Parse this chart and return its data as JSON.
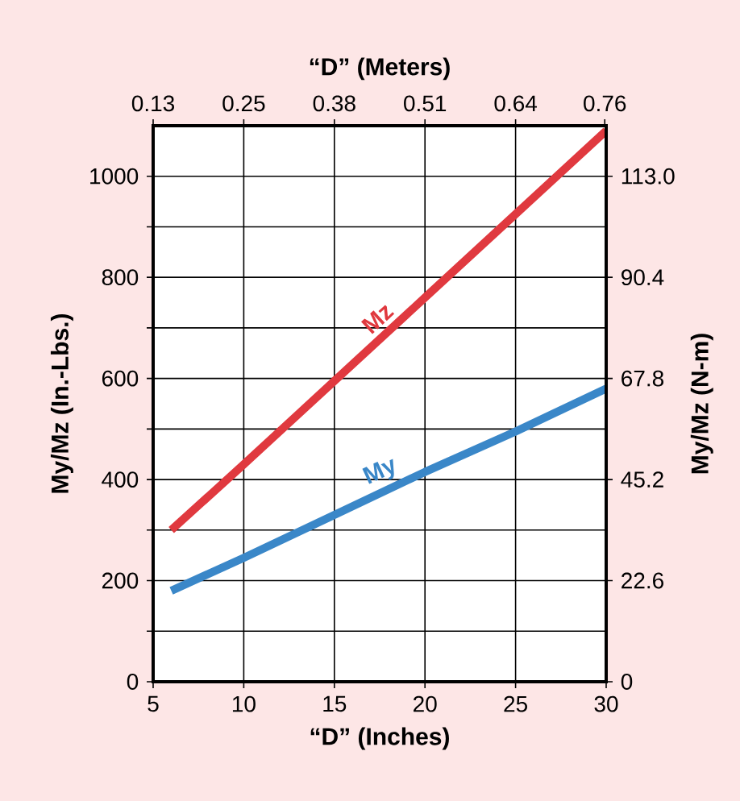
{
  "chart_data": {
    "type": "line",
    "xlabel": "“D” (Inches)",
    "ylabel": "My/Mz (In.-Lbs.)",
    "y2label": "My/Mz (N-m)",
    "x2label": "“D” (Meters)",
    "xlim": [
      5,
      30
    ],
    "xticks": [
      5,
      10,
      15,
      20,
      25,
      30
    ],
    "ylim": [
      0,
      1100
    ],
    "yticks": [
      0,
      {
        "value": 100,
        "label": null
      },
      200,
      {
        "value": 300,
        "label": null
      },
      400,
      {
        "value": 500,
        "label": null
      },
      600,
      {
        "value": 700,
        "label": null
      },
      800,
      {
        "value": 900,
        "label": null
      },
      1000
    ],
    "y2lim": [
      0,
      124.3
    ],
    "y2ticks": [
      0,
      22.6,
      45.2,
      67.8,
      90.4,
      {
        "value": 113.0,
        "label": "113.0"
      }
    ],
    "x2lim": [
      0.127,
      0.762
    ],
    "x2ticks": [
      {
        "value": 0.127,
        "label": "0.13"
      },
      {
        "value": 0.254,
        "label": "0.25"
      },
      {
        "value": 0.381,
        "label": "0.38"
      },
      {
        "value": 0.508,
        "label": "0.51"
      },
      {
        "value": 0.635,
        "label": "0.64"
      },
      0.76
    ],
    "grid": true,
    "marker": "none",
    "line_style": "solid",
    "x": [
      6,
      10,
      15,
      20,
      25,
      30
    ],
    "series": [
      {
        "name": "Mz",
        "color": "#e0393f",
        "values": [
          300,
          430,
          595,
          760,
          925,
          1090
        ]
      },
      {
        "name": "My",
        "color": "#3a87c8",
        "values": [
          180,
          245,
          330,
          415,
          495,
          580
        ]
      }
    ]
  }
}
